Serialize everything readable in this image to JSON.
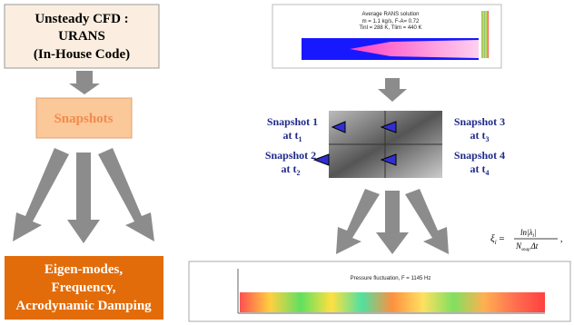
{
  "left": {
    "cfd_box": [
      "Unsteady CFD :",
      "URANS",
      "(In-House Code)"
    ],
    "snapshots_box": "Snapshots",
    "result_box": [
      "Eigen-modes,",
      "Frequency,",
      "Acrodynamic Damping"
    ]
  },
  "right": {
    "rans_plot": {
      "title": "Average RANS solution",
      "lines": [
        "m = 1.1 kg/s, F-A= 0.72",
        "Tinl = 288 K, Tlim = 440 K"
      ]
    },
    "snapshots": [
      {
        "label": "Snapshot 1",
        "time": "at t",
        "sub": "1"
      },
      {
        "label": "Snapshot 2",
        "time": "at t",
        "sub": "2"
      },
      {
        "label": "Snapshot 3",
        "time": "at t",
        "sub": "3"
      },
      {
        "label": "Snapshot 4",
        "time": "at t",
        "sub": "4"
      }
    ],
    "formula": {
      "lhs": "ξ",
      "lhs_sub": "i",
      "eq": "=",
      "num": "ln|λ",
      "num_sub": "i",
      "num_end": "|",
      "den": "N",
      "den_sub": "snap",
      "den_end": "Δt",
      "comma": ","
    },
    "pressure_plot": {
      "title": "Pressure fluctuation, F = 1145 Hz"
    }
  }
}
